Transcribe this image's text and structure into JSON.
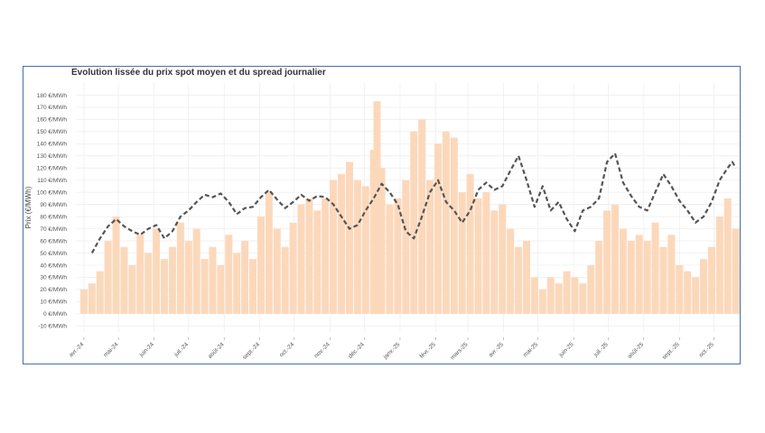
{
  "chart_data": {
    "type": "bar+line",
    "title": "Evolution lissée du prix spot moyen et du spread journalier",
    "ylabel": "Prix (€/MWh)",
    "ylim": [
      -15,
      190
    ],
    "yticks": [
      -10,
      0,
      10,
      20,
      30,
      40,
      50,
      60,
      70,
      80,
      90,
      100,
      110,
      120,
      130,
      140,
      150,
      160,
      170,
      180
    ],
    "ytick_suffix": " €/MWh",
    "xlim": [
      "2024-03-25",
      "2025-10-25"
    ],
    "xticks": [
      {
        "label": "avr.-24",
        "date": "2024-04-01"
      },
      {
        "label": "mai-24",
        "date": "2024-05-01"
      },
      {
        "label": "juin-24",
        "date": "2024-06-01"
      },
      {
        "label": "juil.-24",
        "date": "2024-07-01"
      },
      {
        "label": "août-24",
        "date": "2024-08-01"
      },
      {
        "label": "sept.-24",
        "date": "2024-09-01"
      },
      {
        "label": "oct.-24",
        "date": "2024-10-01"
      },
      {
        "label": "nov.-24",
        "date": "2024-11-01"
      },
      {
        "label": "déc.-24",
        "date": "2024-12-01"
      },
      {
        "label": "janv.-25",
        "date": "2025-01-01"
      },
      {
        "label": "févr.-25",
        "date": "2025-02-01"
      },
      {
        "label": "mars-25",
        "date": "2025-03-01"
      },
      {
        "label": "avr.-25",
        "date": "2025-04-01"
      },
      {
        "label": "mai-25",
        "date": "2025-05-01"
      },
      {
        "label": "juin-25",
        "date": "2025-06-01"
      },
      {
        "label": "juil.-25",
        "date": "2025-07-01"
      },
      {
        "label": "août-25",
        "date": "2025-08-01"
      },
      {
        "label": "sept.-25",
        "date": "2025-09-01"
      },
      {
        "label": "oct.-25",
        "date": "2025-10-01"
      }
    ],
    "grid": true,
    "series": [
      {
        "kind": "bar",
        "color": "#fcd8bb",
        "values": [
          {
            "x": "2024-04-01",
            "y": 20
          },
          {
            "x": "2024-04-08",
            "y": 25
          },
          {
            "x": "2024-04-15",
            "y": 35
          },
          {
            "x": "2024-04-22",
            "y": 60
          },
          {
            "x": "2024-04-29",
            "y": 80
          },
          {
            "x": "2024-05-06",
            "y": 55
          },
          {
            "x": "2024-05-13",
            "y": 40
          },
          {
            "x": "2024-05-20",
            "y": 65
          },
          {
            "x": "2024-05-27",
            "y": 50
          },
          {
            "x": "2024-06-03",
            "y": 70
          },
          {
            "x": "2024-06-10",
            "y": 45
          },
          {
            "x": "2024-06-17",
            "y": 55
          },
          {
            "x": "2024-06-24",
            "y": 75
          },
          {
            "x": "2024-07-01",
            "y": 60
          },
          {
            "x": "2024-07-08",
            "y": 70
          },
          {
            "x": "2024-07-15",
            "y": 45
          },
          {
            "x": "2024-07-22",
            "y": 55
          },
          {
            "x": "2024-07-29",
            "y": 40
          },
          {
            "x": "2024-08-05",
            "y": 65
          },
          {
            "x": "2024-08-12",
            "y": 50
          },
          {
            "x": "2024-08-19",
            "y": 60
          },
          {
            "x": "2024-08-26",
            "y": 45
          },
          {
            "x": "2024-09-02",
            "y": 80
          },
          {
            "x": "2024-09-09",
            "y": 100
          },
          {
            "x": "2024-09-16",
            "y": 70
          },
          {
            "x": "2024-09-23",
            "y": 55
          },
          {
            "x": "2024-09-30",
            "y": 75
          },
          {
            "x": "2024-10-07",
            "y": 90
          },
          {
            "x": "2024-10-14",
            "y": 95
          },
          {
            "x": "2024-10-21",
            "y": 85
          },
          {
            "x": "2024-10-28",
            "y": 95
          },
          {
            "x": "2024-11-04",
            "y": 110
          },
          {
            "x": "2024-11-11",
            "y": 115
          },
          {
            "x": "2024-11-18",
            "y": 125
          },
          {
            "x": "2024-11-25",
            "y": 110
          },
          {
            "x": "2024-12-02",
            "y": 105
          },
          {
            "x": "2024-12-09",
            "y": 135
          },
          {
            "x": "2024-12-12",
            "y": 175
          },
          {
            "x": "2024-12-16",
            "y": 120
          },
          {
            "x": "2024-12-23",
            "y": 90
          },
          {
            "x": "2024-12-30",
            "y": 95
          },
          {
            "x": "2025-01-06",
            "y": 110
          },
          {
            "x": "2025-01-13",
            "y": 150
          },
          {
            "x": "2025-01-20",
            "y": 160
          },
          {
            "x": "2025-01-27",
            "y": 110
          },
          {
            "x": "2025-02-03",
            "y": 140
          },
          {
            "x": "2025-02-10",
            "y": 150
          },
          {
            "x": "2025-02-17",
            "y": 145
          },
          {
            "x": "2025-02-24",
            "y": 100
          },
          {
            "x": "2025-03-03",
            "y": 115
          },
          {
            "x": "2025-03-10",
            "y": 95
          },
          {
            "x": "2025-03-17",
            "y": 100
          },
          {
            "x": "2025-03-24",
            "y": 85
          },
          {
            "x": "2025-03-31",
            "y": 90
          },
          {
            "x": "2025-04-07",
            "y": 70
          },
          {
            "x": "2025-04-14",
            "y": 55
          },
          {
            "x": "2025-04-21",
            "y": 60
          },
          {
            "x": "2025-04-28",
            "y": 30
          },
          {
            "x": "2025-05-05",
            "y": 20
          },
          {
            "x": "2025-05-12",
            "y": 30
          },
          {
            "x": "2025-05-19",
            "y": 25
          },
          {
            "x": "2025-05-26",
            "y": 35
          },
          {
            "x": "2025-06-02",
            "y": 30
          },
          {
            "x": "2025-06-09",
            "y": 25
          },
          {
            "x": "2025-06-16",
            "y": 40
          },
          {
            "x": "2025-06-23",
            "y": 60
          },
          {
            "x": "2025-06-30",
            "y": 85
          },
          {
            "x": "2025-07-07",
            "y": 90
          },
          {
            "x": "2025-07-14",
            "y": 70
          },
          {
            "x": "2025-07-21",
            "y": 60
          },
          {
            "x": "2025-07-28",
            "y": 65
          },
          {
            "x": "2025-08-04",
            "y": 60
          },
          {
            "x": "2025-08-11",
            "y": 75
          },
          {
            "x": "2025-08-18",
            "y": 55
          },
          {
            "x": "2025-08-25",
            "y": 65
          },
          {
            "x": "2025-09-01",
            "y": 40
          },
          {
            "x": "2025-09-08",
            "y": 35
          },
          {
            "x": "2025-09-15",
            "y": 30
          },
          {
            "x": "2025-09-22",
            "y": 45
          },
          {
            "x": "2025-09-29",
            "y": 55
          },
          {
            "x": "2025-10-06",
            "y": 80
          },
          {
            "x": "2025-10-13",
            "y": 95
          },
          {
            "x": "2025-10-20",
            "y": 70
          }
        ]
      },
      {
        "kind": "line",
        "style": "dashed",
        "color": "#555555",
        "values": [
          {
            "x": "2024-04-08",
            "y": 50
          },
          {
            "x": "2024-04-15",
            "y": 62
          },
          {
            "x": "2024-04-22",
            "y": 72
          },
          {
            "x": "2024-04-29",
            "y": 78
          },
          {
            "x": "2024-05-06",
            "y": 72
          },
          {
            "x": "2024-05-13",
            "y": 68
          },
          {
            "x": "2024-05-20",
            "y": 65
          },
          {
            "x": "2024-05-27",
            "y": 70
          },
          {
            "x": "2024-06-03",
            "y": 73
          },
          {
            "x": "2024-06-10",
            "y": 62
          },
          {
            "x": "2024-06-17",
            "y": 68
          },
          {
            "x": "2024-06-24",
            "y": 80
          },
          {
            "x": "2024-07-01",
            "y": 85
          },
          {
            "x": "2024-07-08",
            "y": 92
          },
          {
            "x": "2024-07-15",
            "y": 98
          },
          {
            "x": "2024-07-22",
            "y": 96
          },
          {
            "x": "2024-07-29",
            "y": 99
          },
          {
            "x": "2024-08-05",
            "y": 92
          },
          {
            "x": "2024-08-12",
            "y": 82
          },
          {
            "x": "2024-08-19",
            "y": 87
          },
          {
            "x": "2024-08-26",
            "y": 88
          },
          {
            "x": "2024-09-02",
            "y": 96
          },
          {
            "x": "2024-09-09",
            "y": 102
          },
          {
            "x": "2024-09-16",
            "y": 94
          },
          {
            "x": "2024-09-23",
            "y": 87
          },
          {
            "x": "2024-09-30",
            "y": 92
          },
          {
            "x": "2024-10-07",
            "y": 98
          },
          {
            "x": "2024-10-14",
            "y": 93
          },
          {
            "x": "2024-10-21",
            "y": 97
          },
          {
            "x": "2024-10-28",
            "y": 96
          },
          {
            "x": "2024-11-04",
            "y": 90
          },
          {
            "x": "2024-11-11",
            "y": 80
          },
          {
            "x": "2024-11-18",
            "y": 70
          },
          {
            "x": "2024-11-25",
            "y": 73
          },
          {
            "x": "2024-12-02",
            "y": 85
          },
          {
            "x": "2024-12-09",
            "y": 95
          },
          {
            "x": "2024-12-16",
            "y": 107
          },
          {
            "x": "2024-12-23",
            "y": 100
          },
          {
            "x": "2024-12-30",
            "y": 90
          },
          {
            "x": "2025-01-06",
            "y": 68
          },
          {
            "x": "2025-01-13",
            "y": 62
          },
          {
            "x": "2025-01-20",
            "y": 80
          },
          {
            "x": "2025-01-27",
            "y": 100
          },
          {
            "x": "2025-02-03",
            "y": 110
          },
          {
            "x": "2025-02-10",
            "y": 92
          },
          {
            "x": "2025-02-17",
            "y": 85
          },
          {
            "x": "2025-02-24",
            "y": 75
          },
          {
            "x": "2025-03-03",
            "y": 85
          },
          {
            "x": "2025-03-10",
            "y": 102
          },
          {
            "x": "2025-03-17",
            "y": 108
          },
          {
            "x": "2025-03-24",
            "y": 102
          },
          {
            "x": "2025-03-31",
            "y": 105
          },
          {
            "x": "2025-04-07",
            "y": 118
          },
          {
            "x": "2025-04-14",
            "y": 130
          },
          {
            "x": "2025-04-21",
            "y": 110
          },
          {
            "x": "2025-04-28",
            "y": 88
          },
          {
            "x": "2025-05-05",
            "y": 105
          },
          {
            "x": "2025-05-12",
            "y": 85
          },
          {
            "x": "2025-05-19",
            "y": 92
          },
          {
            "x": "2025-05-26",
            "y": 78
          },
          {
            "x": "2025-06-02",
            "y": 68
          },
          {
            "x": "2025-06-09",
            "y": 85
          },
          {
            "x": "2025-06-16",
            "y": 88
          },
          {
            "x": "2025-06-23",
            "y": 95
          },
          {
            "x": "2025-06-30",
            "y": 125
          },
          {
            "x": "2025-07-07",
            "y": 132
          },
          {
            "x": "2025-07-14",
            "y": 108
          },
          {
            "x": "2025-07-21",
            "y": 97
          },
          {
            "x": "2025-07-28",
            "y": 88
          },
          {
            "x": "2025-08-04",
            "y": 85
          },
          {
            "x": "2025-08-11",
            "y": 100
          },
          {
            "x": "2025-08-18",
            "y": 115
          },
          {
            "x": "2025-08-25",
            "y": 105
          },
          {
            "x": "2025-09-01",
            "y": 93
          },
          {
            "x": "2025-09-08",
            "y": 85
          },
          {
            "x": "2025-09-15",
            "y": 75
          },
          {
            "x": "2025-09-22",
            "y": 80
          },
          {
            "x": "2025-09-29",
            "y": 92
          },
          {
            "x": "2025-10-06",
            "y": 110
          },
          {
            "x": "2025-10-13",
            "y": 120
          },
          {
            "x": "2025-10-17",
            "y": 125
          },
          {
            "x": "2025-10-20",
            "y": 120
          }
        ]
      }
    ]
  }
}
